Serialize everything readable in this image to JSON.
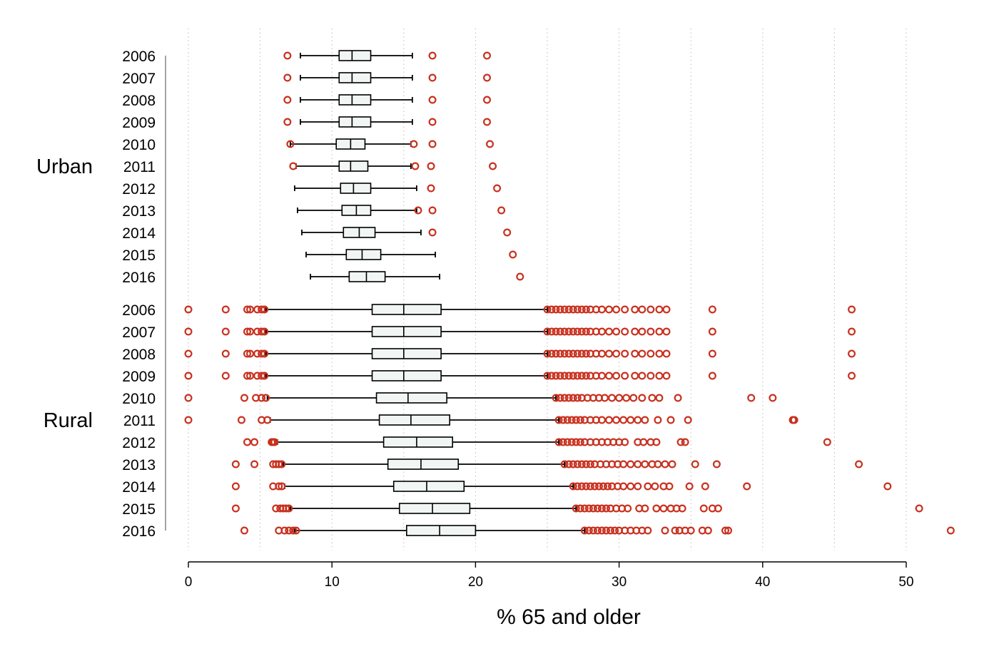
{
  "chart_data": {
    "type": "boxplot",
    "orientation": "horizontal",
    "xlabel": "% 65 and older",
    "xlim": [
      0,
      50
    ],
    "xticks": [
      0,
      10,
      20,
      30,
      40,
      50
    ],
    "grid": true,
    "colors": {
      "box_fill": "#f1f6f5",
      "box_stroke": "#000000",
      "outlier": "#c8311f",
      "grid": "#bbbbbb"
    },
    "groups": [
      {
        "name": "Urban",
        "boxes": [
          {
            "year": "2006",
            "whisker_low": 7.8,
            "q1": 10.5,
            "median": 11.4,
            "q3": 12.7,
            "whisker_high": 15.6,
            "outliers": [
              6.9,
              17.0,
              20.8
            ]
          },
          {
            "year": "2007",
            "whisker_low": 7.8,
            "q1": 10.5,
            "median": 11.4,
            "q3": 12.7,
            "whisker_high": 15.6,
            "outliers": [
              6.9,
              17.0,
              20.8
            ]
          },
          {
            "year": "2008",
            "whisker_low": 7.8,
            "q1": 10.5,
            "median": 11.4,
            "q3": 12.7,
            "whisker_high": 15.6,
            "outliers": [
              6.9,
              17.0,
              20.8
            ]
          },
          {
            "year": "2009",
            "whisker_low": 7.8,
            "q1": 10.5,
            "median": 11.4,
            "q3": 12.7,
            "whisker_high": 15.6,
            "outliers": [
              6.9,
              17.0,
              20.8
            ]
          },
          {
            "year": "2010",
            "whisker_low": 7.1,
            "q1": 10.3,
            "median": 11.3,
            "q3": 12.3,
            "whisker_high": 15.5,
            "outliers": [
              7.1,
              15.7,
              17.0,
              21.0
            ]
          },
          {
            "year": "2011",
            "whisker_low": 7.5,
            "q1": 10.5,
            "median": 11.3,
            "q3": 12.5,
            "whisker_high": 15.5,
            "outliers": [
              7.3,
              15.8,
              16.9,
              21.2
            ]
          },
          {
            "year": "2012",
            "whisker_low": 7.4,
            "q1": 10.6,
            "median": 11.5,
            "q3": 12.7,
            "whisker_high": 15.9,
            "outliers": [
              16.9,
              21.5
            ]
          },
          {
            "year": "2013",
            "whisker_low": 7.6,
            "q1": 10.7,
            "median": 11.7,
            "q3": 12.7,
            "whisker_high": 15.9,
            "outliers": [
              16.0,
              17.0,
              21.8
            ]
          },
          {
            "year": "2014",
            "whisker_low": 7.9,
            "q1": 10.8,
            "median": 11.9,
            "q3": 13.0,
            "whisker_high": 16.2,
            "outliers": [
              17.0,
              22.2
            ]
          },
          {
            "year": "2015",
            "whisker_low": 8.2,
            "q1": 11.0,
            "median": 12.1,
            "q3": 13.4,
            "whisker_high": 17.2,
            "outliers": [
              22.6
            ]
          },
          {
            "year": "2016",
            "whisker_low": 8.5,
            "q1": 11.2,
            "median": 12.4,
            "q3": 13.7,
            "whisker_high": 17.5,
            "outliers": [
              23.1
            ]
          }
        ]
      },
      {
        "name": "Rural",
        "boxes": [
          {
            "year": "2006",
            "whisker_low": 5.4,
            "q1": 12.8,
            "median": 15.0,
            "q3": 17.6,
            "whisker_high": 25.0,
            "outliers": [
              0.0,
              2.6,
              4.1,
              4.3,
              4.8,
              5.1,
              5.3,
              25.0,
              25.3,
              25.6,
              25.9,
              26.2,
              26.5,
              26.8,
              27.1,
              27.4,
              27.7,
              28.0,
              28.4,
              28.8,
              29.3,
              29.8,
              30.4,
              31.1,
              31.6,
              32.2,
              32.8,
              33.3,
              36.5,
              46.2
            ]
          },
          {
            "year": "2007",
            "whisker_low": 5.4,
            "q1": 12.8,
            "median": 15.0,
            "q3": 17.6,
            "whisker_high": 25.0,
            "outliers": [
              0.0,
              2.6,
              4.1,
              4.3,
              4.8,
              5.1,
              5.3,
              25.0,
              25.3,
              25.6,
              25.9,
              26.2,
              26.5,
              26.8,
              27.1,
              27.4,
              27.7,
              28.0,
              28.4,
              28.8,
              29.3,
              29.8,
              30.4,
              31.1,
              31.6,
              32.2,
              32.8,
              33.3,
              36.5,
              46.2
            ]
          },
          {
            "year": "2008",
            "whisker_low": 5.4,
            "q1": 12.8,
            "median": 15.0,
            "q3": 17.6,
            "whisker_high": 25.0,
            "outliers": [
              0.0,
              2.6,
              4.1,
              4.3,
              4.8,
              5.1,
              5.3,
              25.0,
              25.3,
              25.6,
              25.9,
              26.2,
              26.5,
              26.8,
              27.1,
              27.4,
              27.7,
              28.0,
              28.4,
              28.8,
              29.3,
              29.8,
              30.4,
              31.1,
              31.6,
              32.2,
              32.8,
              33.3,
              36.5,
              46.2
            ]
          },
          {
            "year": "2009",
            "whisker_low": 5.4,
            "q1": 12.8,
            "median": 15.0,
            "q3": 17.6,
            "whisker_high": 25.0,
            "outliers": [
              0.0,
              2.6,
              4.1,
              4.3,
              4.8,
              5.1,
              5.3,
              25.0,
              25.3,
              25.6,
              25.9,
              26.2,
              26.5,
              26.8,
              27.1,
              27.4,
              27.7,
              28.0,
              28.4,
              28.8,
              29.3,
              29.8,
              30.4,
              31.1,
              31.6,
              32.2,
              32.8,
              33.3,
              36.5,
              46.2
            ]
          },
          {
            "year": "2010",
            "whisker_low": 5.5,
            "q1": 13.1,
            "median": 15.3,
            "q3": 18.0,
            "whisker_high": 25.6,
            "outliers": [
              0.0,
              3.9,
              4.7,
              5.1,
              5.4,
              25.6,
              25.9,
              26.2,
              26.5,
              26.8,
              27.1,
              27.4,
              27.8,
              28.2,
              28.6,
              29.0,
              29.5,
              30.0,
              30.5,
              31.0,
              31.6,
              32.3,
              32.8,
              34.1,
              39.2,
              40.7
            ]
          },
          {
            "year": "2011",
            "whisker_low": 5.7,
            "q1": 13.3,
            "median": 15.5,
            "q3": 18.2,
            "whisker_high": 25.8,
            "outliers": [
              0.0,
              3.7,
              5.1,
              5.5,
              25.8,
              26.1,
              26.4,
              26.7,
              27.0,
              27.3,
              27.6,
              28.0,
              28.4,
              28.8,
              29.3,
              29.8,
              30.3,
              30.8,
              31.3,
              31.8,
              32.7,
              33.6,
              34.8,
              42.1,
              42.2
            ]
          },
          {
            "year": "2012",
            "whisker_low": 6.2,
            "q1": 13.6,
            "median": 15.9,
            "q3": 18.4,
            "whisker_high": 25.8,
            "outliers": [
              4.1,
              4.6,
              5.8,
              5.9,
              6.0,
              25.8,
              26.1,
              26.4,
              26.7,
              27.0,
              27.3,
              27.6,
              28.0,
              28.4,
              28.8,
              29.2,
              29.6,
              30.0,
              30.4,
              31.3,
              31.7,
              32.2,
              32.6,
              34.3,
              34.6,
              44.5
            ]
          },
          {
            "year": "2013",
            "whisker_low": 6.6,
            "q1": 13.9,
            "median": 16.2,
            "q3": 18.8,
            "whisker_high": 26.2,
            "outliers": [
              3.3,
              4.6,
              5.9,
              6.1,
              6.3,
              6.5,
              26.2,
              26.5,
              26.8,
              27.1,
              27.4,
              27.7,
              28.0,
              28.3,
              28.7,
              29.1,
              29.5,
              29.9,
              30.3,
              30.8,
              31.3,
              31.8,
              32.3,
              32.7,
              33.2,
              33.7,
              35.3,
              36.8,
              46.7
            ]
          },
          {
            "year": "2014",
            "whisker_low": 6.7,
            "q1": 14.3,
            "median": 16.6,
            "q3": 19.2,
            "whisker_high": 26.8,
            "outliers": [
              3.3,
              5.9,
              6.3,
              6.5,
              26.8,
              27.1,
              27.4,
              27.7,
              28.0,
              28.3,
              28.6,
              28.9,
              29.2,
              29.5,
              29.9,
              30.3,
              30.8,
              31.3,
              32.0,
              32.5,
              33.1,
              33.5,
              34.9,
              36.0,
              38.9,
              48.7
            ]
          },
          {
            "year": "2015",
            "whisker_low": 7.1,
            "q1": 14.7,
            "median": 17.0,
            "q3": 19.6,
            "whisker_high": 27.0,
            "outliers": [
              3.3,
              6.1,
              6.4,
              6.6,
              6.8,
              7.0,
              27.0,
              27.3,
              27.6,
              27.9,
              28.2,
              28.5,
              28.8,
              29.1,
              29.4,
              29.8,
              30.2,
              30.6,
              31.4,
              31.8,
              32.6,
              33.1,
              33.6,
              34.0,
              34.4,
              35.9,
              36.5,
              36.9,
              50.9
            ]
          },
          {
            "year": "2016",
            "whisker_low": 7.4,
            "q1": 15.2,
            "median": 17.5,
            "q3": 20.0,
            "whisker_high": 27.6,
            "outliers": [
              3.9,
              6.3,
              6.7,
              7.0,
              7.3,
              7.5,
              27.6,
              27.9,
              28.2,
              28.5,
              28.8,
              29.1,
              29.4,
              29.7,
              30.0,
              30.4,
              30.8,
              31.2,
              31.6,
              32.0,
              33.2,
              33.9,
              34.2,
              34.6,
              35.0,
              35.8,
              36.2,
              37.4,
              37.6,
              53.1
            ]
          }
        ]
      }
    ]
  }
}
